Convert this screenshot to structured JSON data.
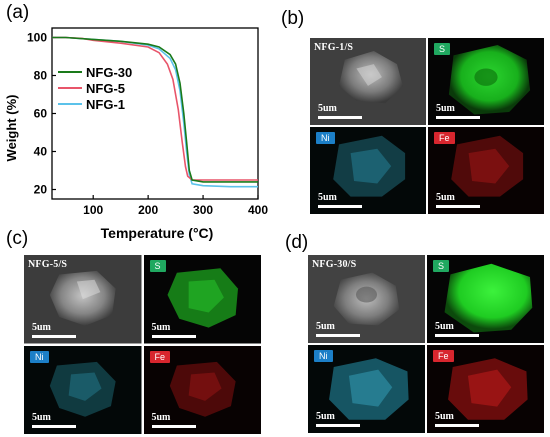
{
  "panel_labels": {
    "a": "(a)",
    "b": "(b)",
    "c": "(c)",
    "d": "(d)"
  },
  "chart_data": {
    "type": "line",
    "xlabel": "Temperature (°C)",
    "ylabel": "Weight (%)",
    "xlim": [
      25,
      400
    ],
    "ylim": [
      15,
      105
    ],
    "xticks": [
      100,
      200,
      300,
      400
    ],
    "yticks": [
      20,
      40,
      60,
      80,
      100
    ],
    "legend_position": "top-left",
    "series": [
      {
        "name": "NFG-30",
        "color": "#1a7a1a",
        "points": [
          [
            25,
            100
          ],
          [
            50,
            100
          ],
          [
            100,
            99
          ],
          [
            150,
            98
          ],
          [
            200,
            96.5
          ],
          [
            220,
            95
          ],
          [
            240,
            91
          ],
          [
            250,
            86
          ],
          [
            258,
            76
          ],
          [
            265,
            60
          ],
          [
            270,
            45
          ],
          [
            275,
            30
          ],
          [
            280,
            25
          ],
          [
            300,
            24
          ],
          [
            350,
            24
          ],
          [
            400,
            24
          ]
        ]
      },
      {
        "name": "NFG-5",
        "color": "#e8556a",
        "points": [
          [
            25,
            100
          ],
          [
            50,
            100
          ],
          [
            80,
            99.5
          ],
          [
            100,
            98.5
          ],
          [
            150,
            97
          ],
          [
            200,
            95
          ],
          [
            220,
            92
          ],
          [
            235,
            86
          ],
          [
            245,
            78
          ],
          [
            255,
            62
          ],
          [
            262,
            45
          ],
          [
            268,
            32
          ],
          [
            272,
            27
          ],
          [
            280,
            25
          ],
          [
            300,
            25
          ],
          [
            350,
            25
          ],
          [
            400,
            25
          ]
        ]
      },
      {
        "name": "NFG-1",
        "color": "#5bc2ea",
        "points": [
          [
            25,
            100
          ],
          [
            50,
            100
          ],
          [
            100,
            99
          ],
          [
            150,
            98
          ],
          [
            200,
            96
          ],
          [
            220,
            94
          ],
          [
            240,
            89
          ],
          [
            250,
            83
          ],
          [
            258,
            72
          ],
          [
            265,
            55
          ],
          [
            270,
            40
          ],
          [
            275,
            28
          ],
          [
            280,
            23
          ],
          [
            300,
            22
          ],
          [
            350,
            21.5
          ],
          [
            400,
            21.5
          ]
        ]
      }
    ]
  },
  "eds_panels": {
    "b": {
      "sample": "NFG-1/S",
      "scale": "5um",
      "s": "S",
      "ni": "Ni",
      "fe": "Fe"
    },
    "c": {
      "sample": "NFG-5/S",
      "scale": "5um",
      "s": "S",
      "ni": "Ni",
      "fe": "Fe"
    },
    "d": {
      "sample": "NFG-30/S",
      "scale": "5um",
      "s": "S",
      "ni": "Ni",
      "fe": "Fe"
    }
  },
  "colors": {
    "s_map": "#22c42a",
    "ni_map": "#2a9fc0",
    "fe_map": "#c81818",
    "s_tag": "#20a860",
    "ni_tag": "#1c7fc7",
    "fe_tag": "#d8262e"
  }
}
